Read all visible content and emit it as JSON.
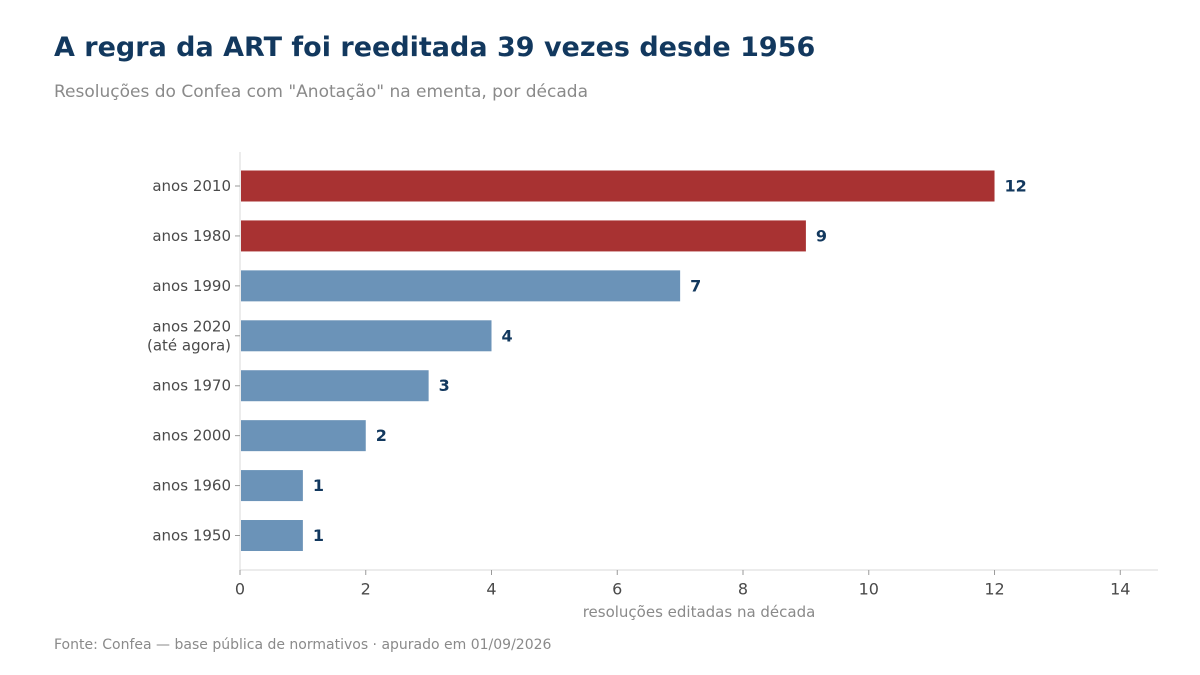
{
  "chart_data": {
    "type": "bar",
    "orientation": "horizontal",
    "title": "A regra da ART foi reeditada 39 vezes desde 1956",
    "subtitle": "Resoluções do Confea com \"Anotação\" na ementa, por década",
    "xlabel": "resoluções editadas na década",
    "ylabel": "",
    "xlim": [
      0,
      14.6
    ],
    "xticks": [
      0,
      2,
      4,
      6,
      8,
      10,
      12,
      14
    ],
    "grid": false,
    "colors": {
      "highlight": "#a83232",
      "default": "#6b93b8",
      "value_label": "#12385e"
    },
    "categories": [
      [
        "anos 2010"
      ],
      [
        "anos 1980"
      ],
      [
        "anos 1990"
      ],
      [
        "anos 2020",
        "(até agora)"
      ],
      [
        "anos 1970"
      ],
      [
        "anos 2000"
      ],
      [
        "anos 1960"
      ],
      [
        "anos 1950"
      ]
    ],
    "values": [
      12,
      9,
      7,
      4,
      3,
      2,
      1,
      1
    ],
    "highlighted": [
      true,
      true,
      false,
      false,
      false,
      false,
      false,
      false
    ],
    "source": "Fonte: Confea — base pública de normativos · apurado em 01/09/2026"
  }
}
